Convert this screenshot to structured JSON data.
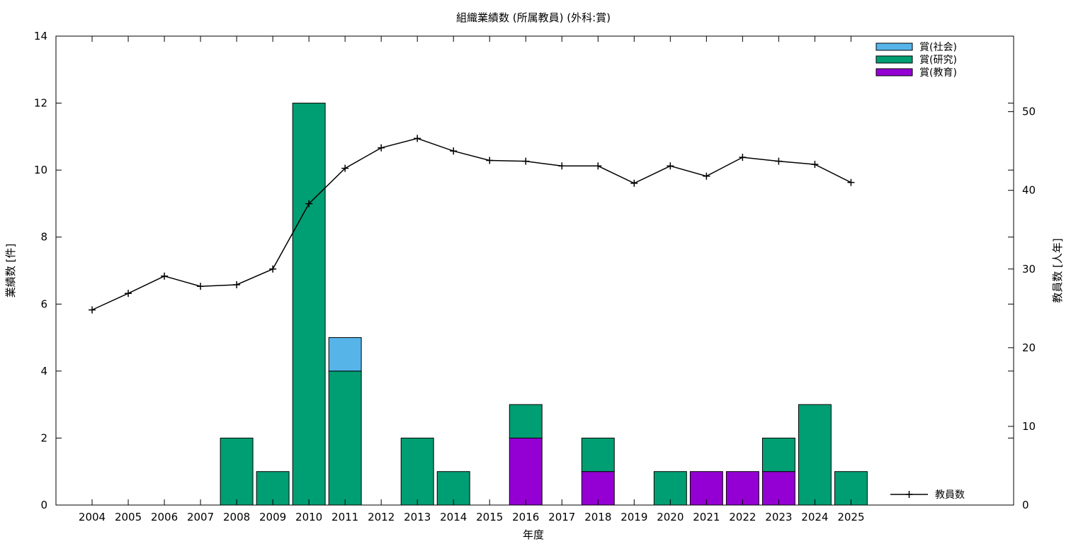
{
  "chart_data": {
    "type": "bar",
    "title": "組織業績数 (所属教員) (外科:賞)",
    "xlabel": "年度",
    "ylabel": "業績数 [件]",
    "y2label": "教員数 [人年]",
    "ylim": [
      0,
      14
    ],
    "y2lim": [
      0,
      59.6
    ],
    "yticks": [
      "0",
      "2",
      "4",
      "6",
      "8",
      "10",
      "12",
      "14"
    ],
    "y2ticks": [
      "0",
      "10",
      "20",
      "30",
      "40",
      "50"
    ],
    "categories": [
      "2004",
      "2005",
      "2006",
      "2007",
      "2008",
      "2009",
      "2010",
      "2011",
      "2012",
      "2013",
      "2014",
      "2015",
      "2016",
      "2017",
      "2018",
      "2019",
      "2020",
      "2021",
      "2022",
      "2023",
      "2024",
      "2025"
    ],
    "stacked": true,
    "series": [
      {
        "name": "賞(教育)",
        "color": "#9400d3",
        "values": [
          0,
          0,
          0,
          0,
          0,
          0,
          0,
          0,
          0,
          0,
          0,
          0,
          2,
          0,
          1,
          0,
          0,
          1,
          1,
          1,
          0,
          0
        ]
      },
      {
        "name": "賞(研究)",
        "color": "#009e73",
        "values": [
          0,
          0,
          0,
          0,
          2,
          1,
          12,
          4,
          0,
          2,
          1,
          0,
          1,
          0,
          1,
          0,
          1,
          0,
          0,
          1,
          3,
          1
        ]
      },
      {
        "name": "賞(社会)",
        "color": "#56b4e9",
        "values": [
          0,
          0,
          0,
          0,
          0,
          0,
          0,
          1,
          0,
          0,
          0,
          0,
          0,
          0,
          0,
          0,
          0,
          0,
          0,
          0,
          0,
          0
        ]
      }
    ],
    "line_series": {
      "name": "教員数",
      "color": "#000000",
      "axis": "right",
      "values": [
        24.8,
        26.9,
        29.1,
        27.8,
        28.0,
        30.0,
        38.3,
        42.8,
        45.4,
        46.6,
        45.0,
        43.8,
        43.7,
        43.1,
        43.1,
        40.9,
        43.1,
        41.8,
        44.2,
        43.7,
        43.3,
        41.0
      ]
    },
    "legend_placement": "top-right",
    "line_legend_placement": "bottom-right",
    "grid": false
  }
}
